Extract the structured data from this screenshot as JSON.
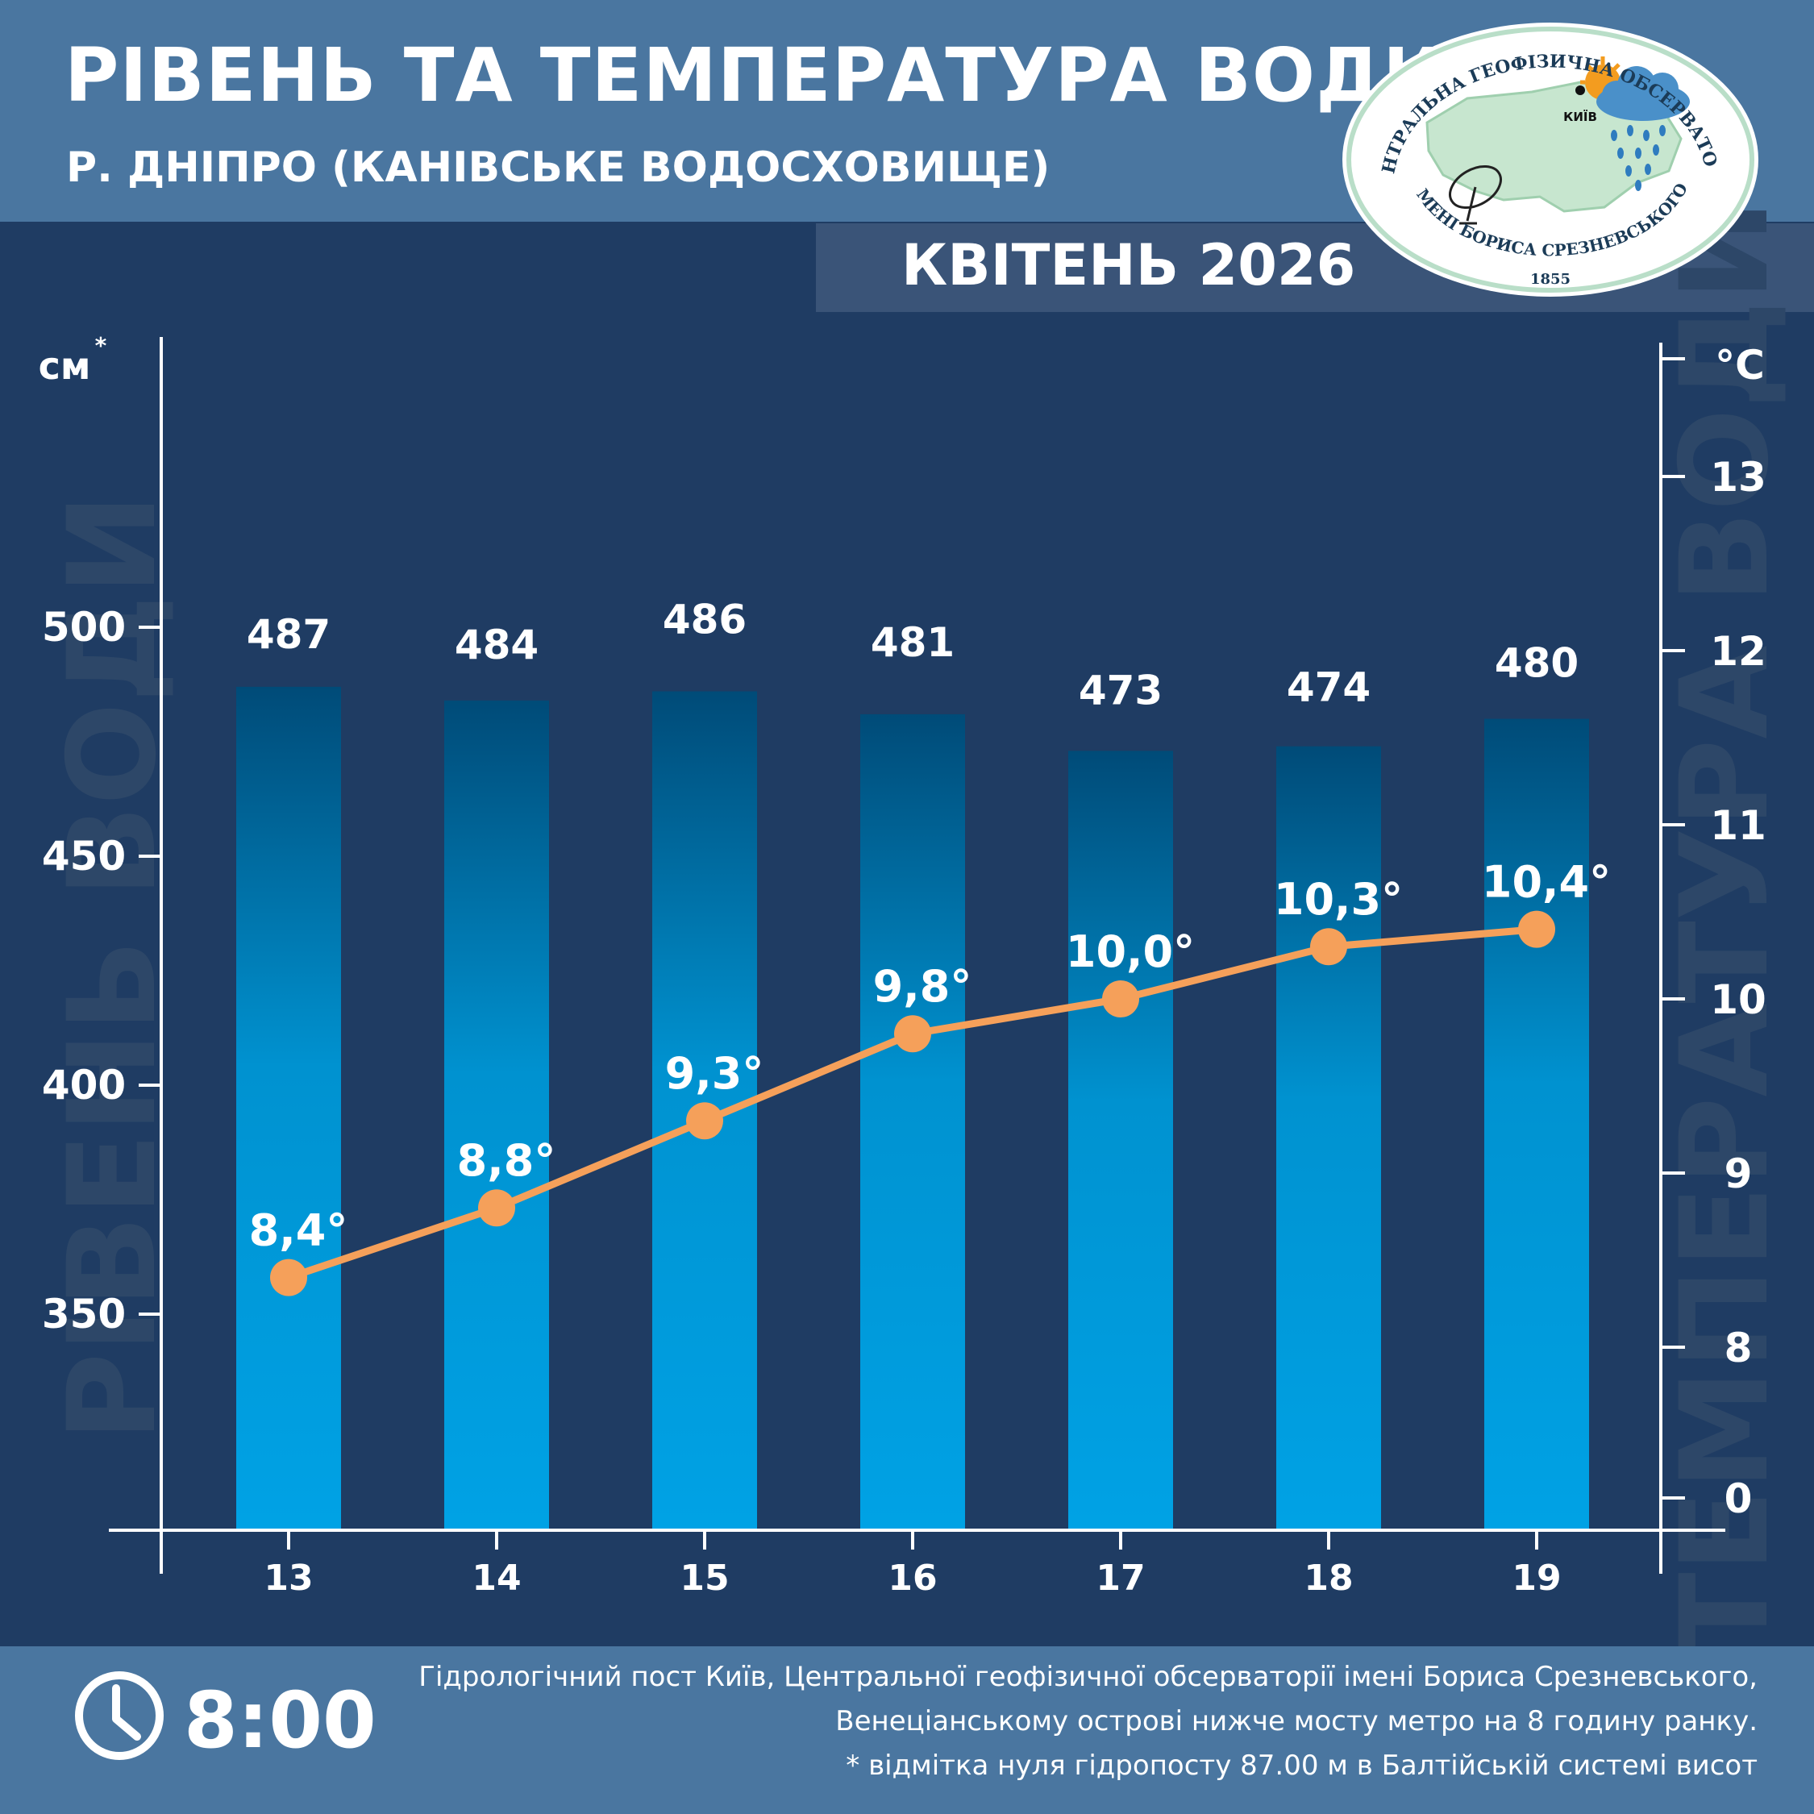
{
  "header": {
    "title": "РІВЕНЬ ТА ТЕМПЕРАТУРА ВОДИ",
    "subtitle": "Р. ДНІПРО (КАНІВСЬКЕ ВОДОСХОВИЩЕ)",
    "month": "КВІТЕНЬ 2026"
  },
  "logo": {
    "top_text": "ЦЕНТРАЛЬНА ГЕОФІЗИЧНА ОБСЕРВАТОРІЯ",
    "bottom_text": "ІМЕНІ БОРИСА СРЕЗНЕВСЬКОГО",
    "year": "1855",
    "city": "КИЇВ"
  },
  "footer": {
    "time": "8:00",
    "note_1": "Гідрологічний пост Київ, Центральної геофізичної обсерваторії імені Бориса Срезневського,",
    "note_2": "Венеціанському острові нижче мосту метро  на 8 годину ранку.",
    "note_3": "* відмітка нуля гідропосту 87.00 м в Балтійській системі висот"
  },
  "colors": {
    "background": "#1f3c63",
    "header": "#4a76a0",
    "bar_bottom": "#00a2e5",
    "bar_top": "#004b78",
    "line": "#f5a05a",
    "axis": "#ffffff"
  },
  "chart_data": {
    "type": "bar",
    "categories": [
      "13",
      "14",
      "15",
      "16",
      "17",
      "18",
      "19"
    ],
    "left_axis": {
      "unit_label": "см",
      "unit_superscript": "*",
      "watermark": "РІВЕНЬ ВОДИ",
      "ticks": [
        350,
        400,
        450,
        500
      ]
    },
    "right_axis": {
      "unit_label": "°C",
      "watermark": "ТЕМПЕРАТУРА ВОДИ",
      "ticks": [
        0,
        8,
        9,
        10,
        11,
        12,
        13
      ],
      "axis_break_between": [
        0,
        8
      ]
    },
    "series": [
      {
        "type": "bar",
        "axis": "left",
        "values": [
          487,
          484,
          486,
          481,
          473,
          474,
          480
        ],
        "labels": [
          "487",
          "484",
          "486",
          "481",
          "473",
          "474",
          "480"
        ]
      },
      {
        "type": "line",
        "axis": "right",
        "values": [
          8.4,
          8.8,
          9.3,
          9.8,
          10.0,
          10.3,
          10.4
        ],
        "labels": [
          "8,4°",
          "8,8°",
          "9,3°",
          "9,8°",
          "10,0°",
          "10,3°",
          "10,4°"
        ]
      }
    ]
  }
}
